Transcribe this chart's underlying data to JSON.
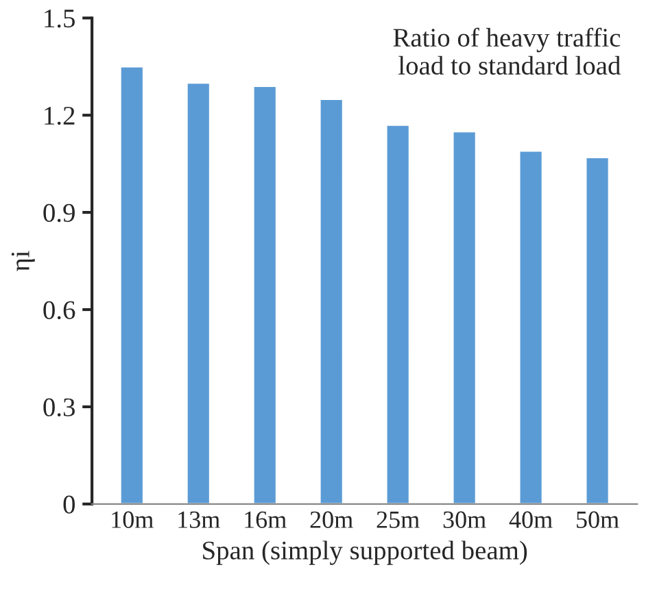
{
  "chart_data": {
    "type": "bar",
    "xlabel": "Span (simply supported beam)",
    "ylabel": "ηi",
    "annotations": [
      "Ratio of heavy traffic\nload to standard load"
    ],
    "categories": [
      "10m",
      "13m",
      "16m",
      "20m",
      "25m",
      "30m",
      "40m",
      "50m"
    ],
    "values": [
      1.35,
      1.3,
      1.29,
      1.25,
      1.17,
      1.15,
      1.09,
      1.07
    ],
    "color": "#5b9bd5",
    "ylim": [
      0,
      1.5
    ],
    "yticks": [
      {
        "value": 0,
        "label": "0"
      },
      {
        "value": 0.3,
        "label": "0.3"
      },
      {
        "value": 0.6,
        "label": "0.6"
      },
      {
        "value": 0.9,
        "label": "0.9"
      },
      {
        "value": 1.2,
        "label": "1.2"
      },
      {
        "value": 1.5,
        "label": "1.5"
      }
    ],
    "grid": false,
    "legend": false
  }
}
